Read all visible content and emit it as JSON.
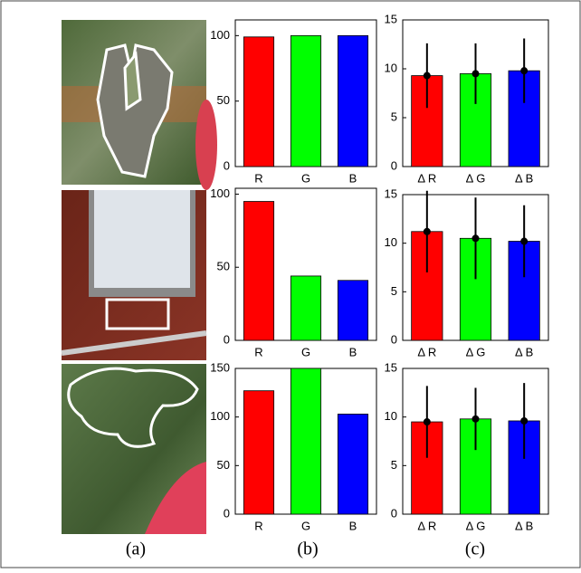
{
  "chart_data": [
    {
      "type": "bar",
      "categories": [
        "R",
        "G",
        "B"
      ],
      "values": [
        99,
        100,
        100
      ],
      "colors": [
        "#ff0000",
        "#00ff00",
        "#0000ff"
      ],
      "ylim": [
        0,
        112
      ],
      "yticks": [
        0,
        50,
        100
      ]
    },
    {
      "type": "bar",
      "categories": [
        "Δ R",
        "Δ G",
        "Δ B"
      ],
      "values": [
        9.3,
        9.5,
        9.8
      ],
      "errors": [
        3.3,
        3.1,
        3.3
      ],
      "colors": [
        "#ff0000",
        "#00ff00",
        "#0000ff"
      ],
      "ylim": [
        0,
        15
      ],
      "yticks": [
        0,
        5,
        10,
        15
      ]
    },
    {
      "type": "bar",
      "categories": [
        "R",
        "G",
        "B"
      ],
      "values": [
        95,
        44,
        41
      ],
      "colors": [
        "#ff0000",
        "#00ff00",
        "#0000ff"
      ],
      "ylim": [
        0,
        104
      ],
      "yticks": [
        0,
        50,
        100
      ]
    },
    {
      "type": "bar",
      "categories": [
        "Δ R",
        "Δ G",
        "Δ B"
      ],
      "values": [
        11.2,
        10.5,
        10.2
      ],
      "errors": [
        4.2,
        4.2,
        3.7
      ],
      "colors": [
        "#ff0000",
        "#00ff00",
        "#0000ff"
      ],
      "ylim": [
        0,
        15
      ],
      "yticks": [
        0,
        5,
        10,
        15
      ]
    },
    {
      "type": "bar",
      "categories": [
        "R",
        "G",
        "B"
      ],
      "values": [
        127,
        150,
        103
      ],
      "colors": [
        "#ff0000",
        "#00ff00",
        "#0000ff"
      ],
      "ylim": [
        0,
        150
      ],
      "yticks": [
        0,
        50,
        100,
        150
      ]
    },
    {
      "type": "bar",
      "categories": [
        "Δ R",
        "Δ G",
        "Δ B"
      ],
      "values": [
        9.5,
        9.8,
        9.6
      ],
      "errors": [
        3.7,
        3.2,
        3.9
      ],
      "colors": [
        "#ff0000",
        "#00ff00",
        "#0000ff"
      ],
      "ylim": [
        0,
        15
      ],
      "yticks": [
        0,
        5,
        10,
        15
      ]
    }
  ],
  "panel_labels": [
    "(a)",
    "(b)",
    "(c)"
  ]
}
